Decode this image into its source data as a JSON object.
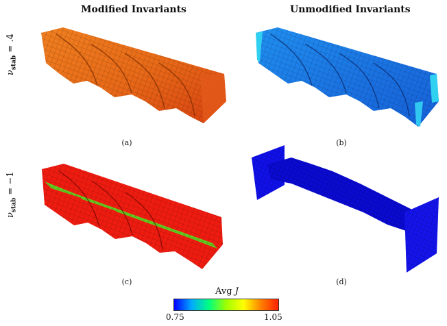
{
  "columns": {
    "left_title": "Modified Invariants",
    "right_title": "Unmodified Invariants"
  },
  "rows": {
    "top_label_sym": "ν",
    "top_label_sub": "stab",
    "top_label_val": " = .4",
    "bottom_label_sym": "ν",
    "bottom_label_sub": "stab",
    "bottom_label_val": " = −1"
  },
  "captions": {
    "a": "(a)",
    "b": "(b)",
    "c": "(c)",
    "d": "(d)"
  },
  "colorbar": {
    "title_prefix": "Avg ",
    "title_var": "J",
    "min_label": "0.75",
    "max_label": "1.05",
    "colors": [
      "#0000ff",
      "#00aaff",
      "#00ff80",
      "#a0ff00",
      "#ffff00",
      "#ff8000",
      "#ff2000"
    ]
  }
}
